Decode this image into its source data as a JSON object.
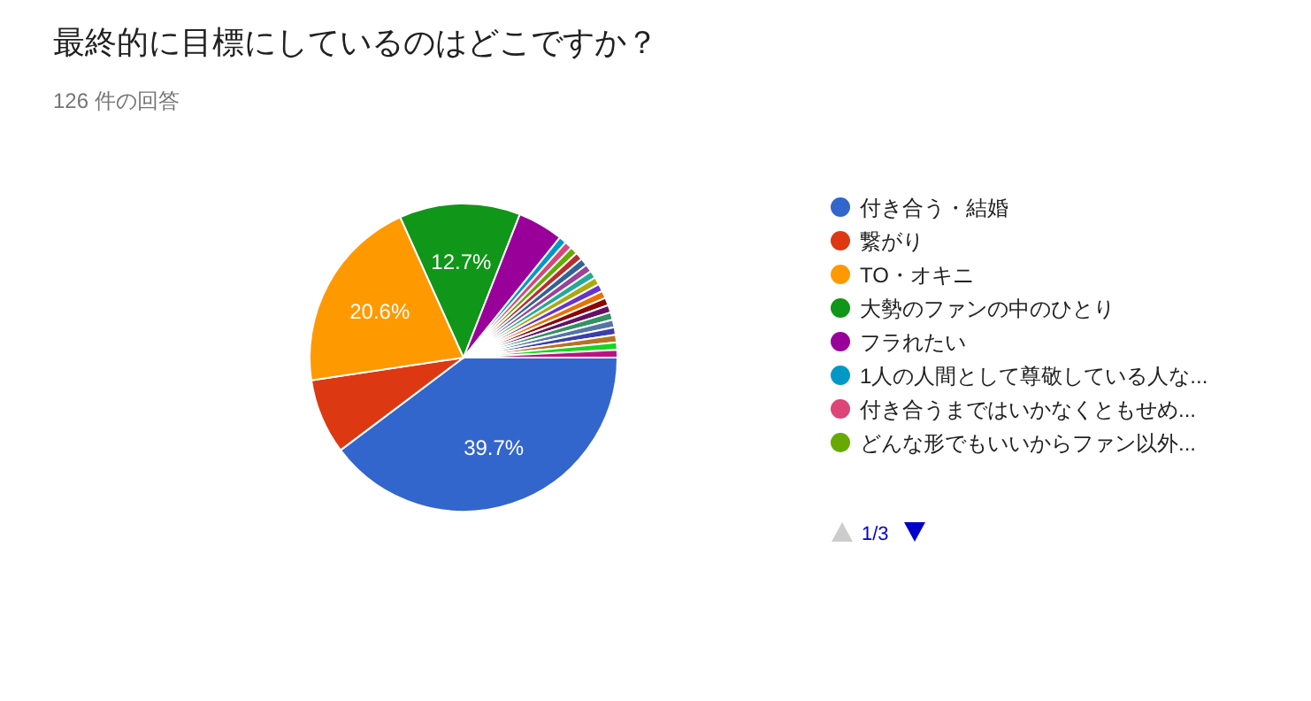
{
  "chart_data": {
    "type": "pie",
    "title": "最終的に目標にしているのはどこですか？",
    "subtitle": "126 件の回答",
    "categories": [
      "付き合う・結婚",
      "繋がり",
      "TO・オキニ",
      "大勢のファンの中のひとり",
      "フラれたい",
      "1人の人間として尊敬している人な...",
      "付き合うまではいかなくともせめ...",
      "どんな形でもいいからファン以外...",
      null,
      null,
      null,
      null,
      null,
      null,
      null,
      null,
      null,
      null,
      null,
      null,
      null,
      null,
      null
    ],
    "values": [
      39.7,
      7.9,
      20.6,
      12.7,
      4.8,
      0.79,
      0.79,
      0.79,
      0.79,
      0.79,
      0.79,
      0.79,
      0.79,
      0.79,
      0.79,
      0.79,
      0.79,
      0.79,
      0.79,
      0.79,
      0.79,
      0.79,
      0.79
    ],
    "colors": [
      "#3366cc",
      "#dc3912",
      "#ff9900",
      "#109618",
      "#990099",
      "#0099c6",
      "#dd4477",
      "#66aa00",
      "#b82e2e",
      "#316395",
      "#994499",
      "#22aa99",
      "#aaaa11",
      "#6633cc",
      "#e67300",
      "#8b0707",
      "#651067",
      "#329262",
      "#5574a6",
      "#3b3eac",
      "#b77322",
      "#16d620",
      "#b91383"
    ],
    "value_labels": [
      "39.7%",
      null,
      "20.6%",
      "12.7%",
      null,
      null,
      null,
      null,
      null,
      null,
      null,
      null,
      null,
      null,
      null,
      null,
      null,
      null,
      null,
      null,
      null,
      null,
      null
    ],
    "legend": "right",
    "annotations": [
      "1/3"
    ]
  }
}
